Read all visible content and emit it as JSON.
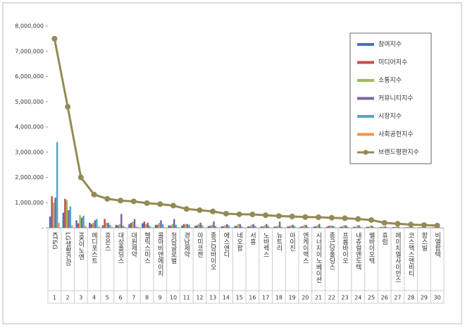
{
  "chart_data": {
    "type": "bar",
    "categories": [
      "KT&G",
      "LG생활건강",
      "HK이노엔",
      "메디포스트",
      "휴온스",
      "대상홀딩스",
      "대원제약",
      "헬릭스미스",
      "콜마비앤에이치",
      "청담글로벌",
      "경남제약",
      "아미코젠",
      "종근당바이오",
      "에스앤디",
      "네오팜",
      "서흥",
      "노바렉스",
      "뉴트리",
      "아이진",
      "엔케이맥스",
      "시너지이노베이션",
      "종근당홀딩스",
      "프롬바이오",
      "내츄럴엔도텍",
      "쎌바이오텍",
      "휴럼",
      "에이치엘사이언스",
      "코스맥스엔비티",
      "팜스빌",
      "비엘팜텍"
    ],
    "ranks": [
      1,
      2,
      3,
      4,
      5,
      6,
      7,
      8,
      9,
      10,
      11,
      12,
      13,
      14,
      15,
      16,
      17,
      18,
      19,
      20,
      21,
      22,
      23,
      24,
      25,
      26,
      27,
      28,
      29,
      30
    ],
    "series": [
      {
        "name": "참여지수",
        "color": "#4472c4",
        "values": [
          450000,
          600000,
          300000,
          200000,
          100000,
          120000,
          150000,
          180000,
          120000,
          100000,
          90000,
          80000,
          70000,
          60000,
          70000,
          60000,
          60000,
          50000,
          50000,
          50000,
          50000,
          50000,
          40000,
          40000,
          40000,
          30000,
          30000,
          20000,
          20000,
          20000
        ]
      },
      {
        "name": "미디어지수",
        "color": "#c0504d",
        "values": [
          1250000,
          1150000,
          180000,
          150000,
          350000,
          100000,
          200000,
          250000,
          120000,
          80000,
          150000,
          100000,
          80000,
          60000,
          80000,
          60000,
          50000,
          50000,
          60000,
          60000,
          60000,
          80000,
          50000,
          40000,
          40000,
          30000,
          30000,
          20000,
          20000,
          20000
        ]
      },
      {
        "name": "소통지수",
        "color": "#9bbb59",
        "values": [
          1000000,
          1100000,
          500000,
          200000,
          200000,
          150000,
          250000,
          150000,
          200000,
          150000,
          150000,
          150000,
          120000,
          100000,
          150000,
          120000,
          100000,
          80000,
          100000,
          120000,
          100000,
          100000,
          90000,
          90000,
          80000,
          60000,
          50000,
          40000,
          30000,
          30000
        ]
      },
      {
        "name": "커뮤니티지수",
        "color": "#8064a2",
        "values": [
          1200000,
          700000,
          400000,
          300000,
          200000,
          550000,
          350000,
          200000,
          300000,
          350000,
          150000,
          200000,
          250000,
          150000,
          150000,
          150000,
          150000,
          250000,
          120000,
          120000,
          150000,
          80000,
          100000,
          100000,
          80000,
          60000,
          40000,
          40000,
          30000,
          20000
        ]
      },
      {
        "name": "시장지수",
        "color": "#4bacc6",
        "values": [
          3400000,
          850000,
          480000,
          350000,
          120000,
          80000,
          50000,
          80000,
          150000,
          120000,
          120000,
          100000,
          80000,
          100000,
          50000,
          80000,
          80000,
          40000,
          60000,
          40000,
          30000,
          50000,
          50000,
          40000,
          30000,
          20000,
          10000,
          20000,
          10000,
          0
        ]
      },
      {
        "name": "사회공헌지수",
        "color": "#f79646",
        "values": [
          200000,
          100000,
          80000,
          60000,
          50000,
          40000,
          40000,
          30000,
          40000,
          30000,
          30000,
          20000,
          20000,
          20000,
          20000,
          20000,
          20000,
          10000,
          10000,
          10000,
          10000,
          10000,
          10000,
          10000,
          10000,
          0,
          0,
          0,
          0,
          0
        ]
      },
      {
        "name": "브랜드평판지수",
        "color": "#948a54",
        "kind": "line",
        "values": [
          7500000,
          4800000,
          2000000,
          1320000,
          1150000,
          1080000,
          1050000,
          980000,
          940000,
          880000,
          750000,
          700000,
          650000,
          560000,
          540000,
          530000,
          500000,
          470000,
          450000,
          430000,
          420000,
          400000,
          380000,
          350000,
          310000,
          200000,
          160000,
          130000,
          110000,
          90000
        ]
      }
    ],
    "ylim": [
      0,
      8000000
    ],
    "yticks": [
      {
        "value": 0,
        "label": "-"
      },
      {
        "value": 1000000,
        "label": "1,000,000"
      },
      {
        "value": 2000000,
        "label": "2,000,000"
      },
      {
        "value": 3000000,
        "label": "3,000,000"
      },
      {
        "value": 4000000,
        "label": "4,000,000"
      },
      {
        "value": 5000000,
        "label": "5,000,000"
      },
      {
        "value": 6000000,
        "label": "6,000,000"
      },
      {
        "value": 7000000,
        "label": "7,000,000"
      },
      {
        "value": 8000000,
        "label": "8,000,000"
      }
    ],
    "legend": "upper right"
  }
}
